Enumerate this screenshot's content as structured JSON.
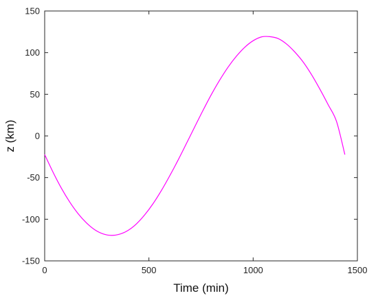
{
  "chart_data": {
    "type": "line",
    "title": "",
    "xlabel": "Time (min)",
    "ylabel": "z (km)",
    "xlim": [
      0,
      1500
    ],
    "ylim": [
      -150,
      150
    ],
    "xticks": [
      0,
      500,
      1000,
      1500
    ],
    "yticks": [
      -150,
      -100,
      -50,
      0,
      50,
      100,
      150
    ],
    "xtick_labels": [
      "0",
      "500",
      "1000",
      "1500"
    ],
    "ytick_labels": [
      "-150",
      "-100",
      "-50",
      "0",
      "50",
      "100",
      "150"
    ],
    "grid": false,
    "series": [
      {
        "color": "#ff00ff",
        "x": [
          0,
          40,
          80,
          120,
          160,
          200,
          240,
          280,
          320,
          360,
          400,
          440,
          480,
          520,
          560,
          600,
          640,
          680,
          720,
          760,
          800,
          840,
          880,
          920,
          960,
          1000,
          1040,
          1080,
          1120,
          1160,
          1200,
          1240,
          1280,
          1320,
          1360,
          1400,
          1440
        ],
        "y": [
          -22.4,
          -43.5,
          -62.7,
          -79.3,
          -93.2,
          -104.3,
          -112.6,
          -117.6,
          -119.4,
          -117.9,
          -113.4,
          -105.6,
          -94.7,
          -81.3,
          -65.5,
          -47.8,
          -29.0,
          -9.1,
          11.0,
          30.9,
          49.9,
          67.2,
          82.7,
          95.8,
          106.5,
          114.3,
          118.9,
          119.2,
          116.9,
          110.4,
          100.7,
          88.7,
          73.6,
          56.2,
          37.4,
          17.4,
          -22.4
        ]
      }
    ]
  }
}
